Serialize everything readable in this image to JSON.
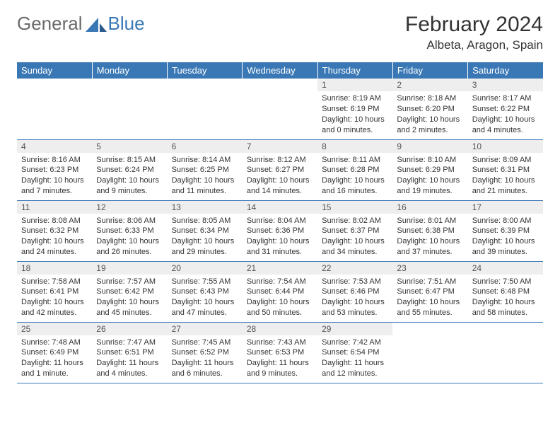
{
  "logo": {
    "general": "General",
    "blue": "Blue"
  },
  "colors": {
    "brand": "#3a78b5",
    "logo_gray": "#6a6a6a",
    "header_bg": "#3a78b5",
    "header_text": "#ffffff",
    "daynum_bg": "#eeeeee",
    "text": "#333333",
    "grid_line": "#3a78b5"
  },
  "title": "February 2024",
  "location": "Albeta, Aragon, Spain",
  "weekdays": [
    "Sunday",
    "Monday",
    "Tuesday",
    "Wednesday",
    "Thursday",
    "Friday",
    "Saturday"
  ],
  "weeks": [
    [
      null,
      null,
      null,
      null,
      {
        "n": "1",
        "sr": "Sunrise: 8:19 AM",
        "ss": "Sunset: 6:19 PM",
        "dl": "Daylight: 10 hours and 0 minutes."
      },
      {
        "n": "2",
        "sr": "Sunrise: 8:18 AM",
        "ss": "Sunset: 6:20 PM",
        "dl": "Daylight: 10 hours and 2 minutes."
      },
      {
        "n": "3",
        "sr": "Sunrise: 8:17 AM",
        "ss": "Sunset: 6:22 PM",
        "dl": "Daylight: 10 hours and 4 minutes."
      }
    ],
    [
      {
        "n": "4",
        "sr": "Sunrise: 8:16 AM",
        "ss": "Sunset: 6:23 PM",
        "dl": "Daylight: 10 hours and 7 minutes."
      },
      {
        "n": "5",
        "sr": "Sunrise: 8:15 AM",
        "ss": "Sunset: 6:24 PM",
        "dl": "Daylight: 10 hours and 9 minutes."
      },
      {
        "n": "6",
        "sr": "Sunrise: 8:14 AM",
        "ss": "Sunset: 6:25 PM",
        "dl": "Daylight: 10 hours and 11 minutes."
      },
      {
        "n": "7",
        "sr": "Sunrise: 8:12 AM",
        "ss": "Sunset: 6:27 PM",
        "dl": "Daylight: 10 hours and 14 minutes."
      },
      {
        "n": "8",
        "sr": "Sunrise: 8:11 AM",
        "ss": "Sunset: 6:28 PM",
        "dl": "Daylight: 10 hours and 16 minutes."
      },
      {
        "n": "9",
        "sr": "Sunrise: 8:10 AM",
        "ss": "Sunset: 6:29 PM",
        "dl": "Daylight: 10 hours and 19 minutes."
      },
      {
        "n": "10",
        "sr": "Sunrise: 8:09 AM",
        "ss": "Sunset: 6:31 PM",
        "dl": "Daylight: 10 hours and 21 minutes."
      }
    ],
    [
      {
        "n": "11",
        "sr": "Sunrise: 8:08 AM",
        "ss": "Sunset: 6:32 PM",
        "dl": "Daylight: 10 hours and 24 minutes."
      },
      {
        "n": "12",
        "sr": "Sunrise: 8:06 AM",
        "ss": "Sunset: 6:33 PM",
        "dl": "Daylight: 10 hours and 26 minutes."
      },
      {
        "n": "13",
        "sr": "Sunrise: 8:05 AM",
        "ss": "Sunset: 6:34 PM",
        "dl": "Daylight: 10 hours and 29 minutes."
      },
      {
        "n": "14",
        "sr": "Sunrise: 8:04 AM",
        "ss": "Sunset: 6:36 PM",
        "dl": "Daylight: 10 hours and 31 minutes."
      },
      {
        "n": "15",
        "sr": "Sunrise: 8:02 AM",
        "ss": "Sunset: 6:37 PM",
        "dl": "Daylight: 10 hours and 34 minutes."
      },
      {
        "n": "16",
        "sr": "Sunrise: 8:01 AM",
        "ss": "Sunset: 6:38 PM",
        "dl": "Daylight: 10 hours and 37 minutes."
      },
      {
        "n": "17",
        "sr": "Sunrise: 8:00 AM",
        "ss": "Sunset: 6:39 PM",
        "dl": "Daylight: 10 hours and 39 minutes."
      }
    ],
    [
      {
        "n": "18",
        "sr": "Sunrise: 7:58 AM",
        "ss": "Sunset: 6:41 PM",
        "dl": "Daylight: 10 hours and 42 minutes."
      },
      {
        "n": "19",
        "sr": "Sunrise: 7:57 AM",
        "ss": "Sunset: 6:42 PM",
        "dl": "Daylight: 10 hours and 45 minutes."
      },
      {
        "n": "20",
        "sr": "Sunrise: 7:55 AM",
        "ss": "Sunset: 6:43 PM",
        "dl": "Daylight: 10 hours and 47 minutes."
      },
      {
        "n": "21",
        "sr": "Sunrise: 7:54 AM",
        "ss": "Sunset: 6:44 PM",
        "dl": "Daylight: 10 hours and 50 minutes."
      },
      {
        "n": "22",
        "sr": "Sunrise: 7:53 AM",
        "ss": "Sunset: 6:46 PM",
        "dl": "Daylight: 10 hours and 53 minutes."
      },
      {
        "n": "23",
        "sr": "Sunrise: 7:51 AM",
        "ss": "Sunset: 6:47 PM",
        "dl": "Daylight: 10 hours and 55 minutes."
      },
      {
        "n": "24",
        "sr": "Sunrise: 7:50 AM",
        "ss": "Sunset: 6:48 PM",
        "dl": "Daylight: 10 hours and 58 minutes."
      }
    ],
    [
      {
        "n": "25",
        "sr": "Sunrise: 7:48 AM",
        "ss": "Sunset: 6:49 PM",
        "dl": "Daylight: 11 hours and 1 minute."
      },
      {
        "n": "26",
        "sr": "Sunrise: 7:47 AM",
        "ss": "Sunset: 6:51 PM",
        "dl": "Daylight: 11 hours and 4 minutes."
      },
      {
        "n": "27",
        "sr": "Sunrise: 7:45 AM",
        "ss": "Sunset: 6:52 PM",
        "dl": "Daylight: 11 hours and 6 minutes."
      },
      {
        "n": "28",
        "sr": "Sunrise: 7:43 AM",
        "ss": "Sunset: 6:53 PM",
        "dl": "Daylight: 11 hours and 9 minutes."
      },
      {
        "n": "29",
        "sr": "Sunrise: 7:42 AM",
        "ss": "Sunset: 6:54 PM",
        "dl": "Daylight: 11 hours and 12 minutes."
      },
      null,
      null
    ]
  ]
}
